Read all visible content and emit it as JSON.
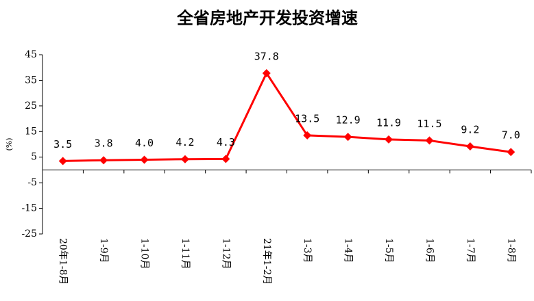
{
  "chart_data": {
    "type": "line",
    "title": "全省房地产开发投资增速",
    "y_label": "(%)",
    "categories": [
      "20年1-8月",
      "1-9月",
      "1-10月",
      "1-11月",
      "1-12月",
      "21年1-2月",
      "1-3月",
      "1-4月",
      "1-5月",
      "1-6月",
      "1-7月",
      "1-8月"
    ],
    "series": [
      {
        "name": "全省房地产开发投资增速",
        "color": "#ff0000",
        "values": [
          3.5,
          3.8,
          4.0,
          4.2,
          4.3,
          37.8,
          13.5,
          12.9,
          11.9,
          11.5,
          9.2,
          7.0
        ],
        "value_labels": [
          "3.5",
          "3.8",
          "4.0",
          "4.2",
          "4.3",
          "37.8",
          "13.5",
          "12.9",
          "11.9",
          "11.5",
          "9.2",
          "7.0"
        ]
      }
    ],
    "ylim": [
      -25,
      45
    ],
    "yticks": [
      -25,
      -15,
      -5,
      5,
      15,
      25,
      35,
      45
    ],
    "grid": false,
    "legend": false
  }
}
